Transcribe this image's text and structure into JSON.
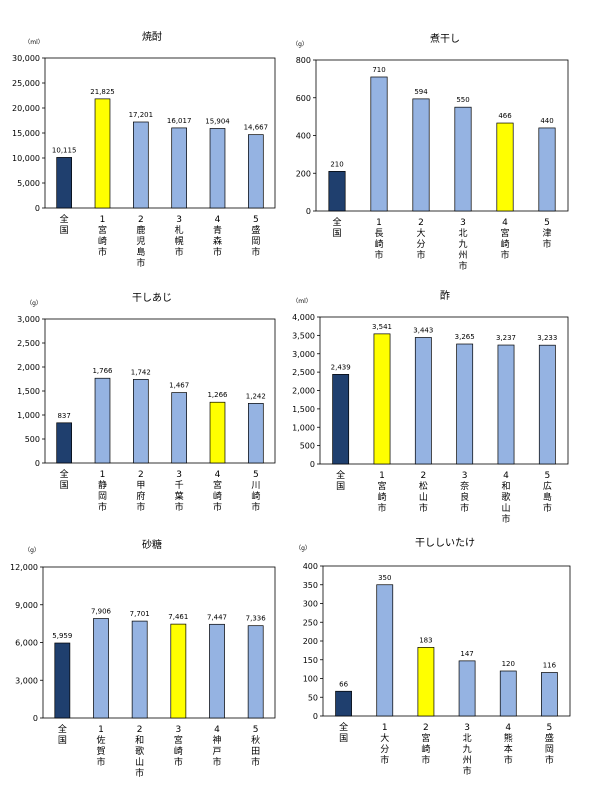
{
  "colors": {
    "national": "#1F3F6E",
    "miyazaki": "#FFFF00",
    "city": "#95B3E2",
    "stroke": "#000000"
  },
  "chart_data": [
    {
      "type": "bar",
      "title": "焼酎",
      "unit": "（ml）",
      "ylim": [
        0,
        30000
      ],
      "ticks": [
        "0",
        "5,000",
        "10,000",
        "15,000",
        "20,000",
        "25,000",
        "30,000"
      ],
      "tick_values": [
        0,
        5000,
        10000,
        15000,
        20000,
        25000,
        30000
      ],
      "categories": [
        "全国",
        "1宮崎市",
        "2鹿児島市",
        "3札幌市",
        "4青森市",
        "5盛岡市"
      ],
      "category_labels": [
        [
          "全",
          "国"
        ],
        [
          "1",
          "宮",
          "崎",
          "市"
        ],
        [
          "2",
          "鹿",
          "児",
          "島",
          "市"
        ],
        [
          "3",
          "札",
          "幌",
          "市"
        ],
        [
          "4",
          "青",
          "森",
          "市"
        ],
        [
          "5",
          "盛",
          "岡",
          "市"
        ]
      ],
      "values": [
        10115,
        21825,
        17201,
        16017,
        15904,
        14667
      ],
      "value_labels": [
        "10,115",
        "21,825",
        "17,201",
        "16,017",
        "15,904",
        "14,667"
      ],
      "bar_colors": [
        "national",
        "miyazaki",
        "city",
        "city",
        "city",
        "city"
      ]
    },
    {
      "type": "bar",
      "title": "煮干し",
      "unit": "（g）",
      "ylim": [
        0,
        800
      ],
      "ticks": [
        "0",
        "200",
        "400",
        "600",
        "800"
      ],
      "tick_values": [
        0,
        200,
        400,
        600,
        800
      ],
      "categories": [
        "全国",
        "1長崎市",
        "2大分市",
        "3北九州市",
        "4宮崎市",
        "5津市"
      ],
      "category_labels": [
        [
          "全",
          "国"
        ],
        [
          "1",
          "長",
          "崎",
          "市"
        ],
        [
          "2",
          "大",
          "分",
          "市"
        ],
        [
          "3",
          "北",
          "九",
          "州",
          "市"
        ],
        [
          "4",
          "宮",
          "崎",
          "市"
        ],
        [
          "5",
          "津",
          "市"
        ]
      ],
      "values": [
        210,
        710,
        594,
        550,
        466,
        440
      ],
      "value_labels": [
        "210",
        "710",
        "594",
        "550",
        "466",
        "440"
      ],
      "bar_colors": [
        "national",
        "city",
        "city",
        "city",
        "miyazaki",
        "city"
      ]
    },
    {
      "type": "bar",
      "title": "干しあじ",
      "unit": "（g）",
      "ylim": [
        0,
        3000
      ],
      "ticks": [
        "0",
        "500",
        "1,000",
        "1,500",
        "2,000",
        "2,500",
        "3,000"
      ],
      "tick_values": [
        0,
        500,
        1000,
        1500,
        2000,
        2500,
        3000
      ],
      "categories": [
        "全国",
        "1静岡市",
        "2甲府市",
        "3千葉市",
        "4宮崎市",
        "5川崎市"
      ],
      "category_labels": [
        [
          "全",
          "国"
        ],
        [
          "1",
          "静",
          "岡",
          "市"
        ],
        [
          "2",
          "甲",
          "府",
          "市"
        ],
        [
          "3",
          "千",
          "葉",
          "市"
        ],
        [
          "4",
          "宮",
          "崎",
          "市"
        ],
        [
          "5",
          "川",
          "崎",
          "市"
        ]
      ],
      "values": [
        837,
        1766,
        1742,
        1467,
        1266,
        1242
      ],
      "value_labels": [
        "837",
        "1,766",
        "1,742",
        "1,467",
        "1,266",
        "1,242"
      ],
      "bar_colors": [
        "national",
        "city",
        "city",
        "city",
        "miyazaki",
        "city"
      ]
    },
    {
      "type": "bar",
      "title": "酢",
      "unit": "（ml）",
      "ylim": [
        0,
        4000
      ],
      "ticks": [
        "0",
        "500",
        "1,000",
        "1,500",
        "2,000",
        "2,500",
        "3,000",
        "3,500",
        "4,000"
      ],
      "tick_values": [
        0,
        500,
        1000,
        1500,
        2000,
        2500,
        3000,
        3500,
        4000
      ],
      "categories": [
        "全国",
        "1宮崎市",
        "2松山市",
        "3奈良市",
        "4和歌山市",
        "5広島市"
      ],
      "category_labels": [
        [
          "全",
          "国"
        ],
        [
          "1",
          "宮",
          "崎",
          "市"
        ],
        [
          "2",
          "松",
          "山",
          "市"
        ],
        [
          "3",
          "奈",
          "良",
          "市"
        ],
        [
          "4",
          "和",
          "歌",
          "山",
          "市"
        ],
        [
          "5",
          "広",
          "島",
          "市"
        ]
      ],
      "values": [
        2439,
        3541,
        3443,
        3265,
        3237,
        3233
      ],
      "value_labels": [
        "2,439",
        "3,541",
        "3,443",
        "3,265",
        "3,237",
        "3,233"
      ],
      "bar_colors": [
        "national",
        "miyazaki",
        "city",
        "city",
        "city",
        "city"
      ]
    },
    {
      "type": "bar",
      "title": "砂糖",
      "unit": "（g）",
      "ylim": [
        0,
        12000
      ],
      "ticks": [
        "0",
        "3,000",
        "6,000",
        "9,000",
        "12,000"
      ],
      "tick_values": [
        0,
        3000,
        6000,
        9000,
        12000
      ],
      "categories": [
        "全国",
        "1佐賀市",
        "2和歌山市",
        "3宮崎市",
        "4神戸市",
        "5秋田市"
      ],
      "category_labels": [
        [
          "全",
          "国"
        ],
        [
          "1",
          "佐",
          "賀",
          "市"
        ],
        [
          "2",
          "和",
          "歌",
          "山",
          "市"
        ],
        [
          "3",
          "宮",
          "崎",
          "市"
        ],
        [
          "4",
          "神",
          "戸",
          "市"
        ],
        [
          "5",
          "秋",
          "田",
          "市"
        ]
      ],
      "values": [
        5959,
        7906,
        7701,
        7461,
        7447,
        7336
      ],
      "value_labels": [
        "5,959",
        "7,906",
        "7,701",
        "7,461",
        "7,447",
        "7,336"
      ],
      "bar_colors": [
        "national",
        "city",
        "city",
        "miyazaki",
        "city",
        "city"
      ]
    },
    {
      "type": "bar",
      "title": "干ししいたけ",
      "unit": "（g）",
      "ylim": [
        0,
        400
      ],
      "ticks": [
        "0",
        "50",
        "100",
        "150",
        "200",
        "250",
        "300",
        "350",
        "400"
      ],
      "tick_values": [
        0,
        50,
        100,
        150,
        200,
        250,
        300,
        350,
        400
      ],
      "categories": [
        "全国",
        "1大分市",
        "2宮崎市",
        "3北九州市",
        "4熊本市",
        "5盛岡市"
      ],
      "category_labels": [
        [
          "全",
          "国"
        ],
        [
          "1",
          "大",
          "分",
          "市"
        ],
        [
          "2",
          "宮",
          "崎",
          "市"
        ],
        [
          "3",
          "北",
          "九",
          "州",
          "市"
        ],
        [
          "4",
          "熊",
          "本",
          "市"
        ],
        [
          "5",
          "盛",
          "岡",
          "市"
        ]
      ],
      "values": [
        66,
        350,
        183,
        147,
        120,
        116
      ],
      "value_labels": [
        "66",
        "350",
        "183",
        "147",
        "120",
        "116"
      ],
      "bar_colors": [
        "national",
        "city",
        "miyazaki",
        "city",
        "city",
        "city"
      ]
    }
  ]
}
